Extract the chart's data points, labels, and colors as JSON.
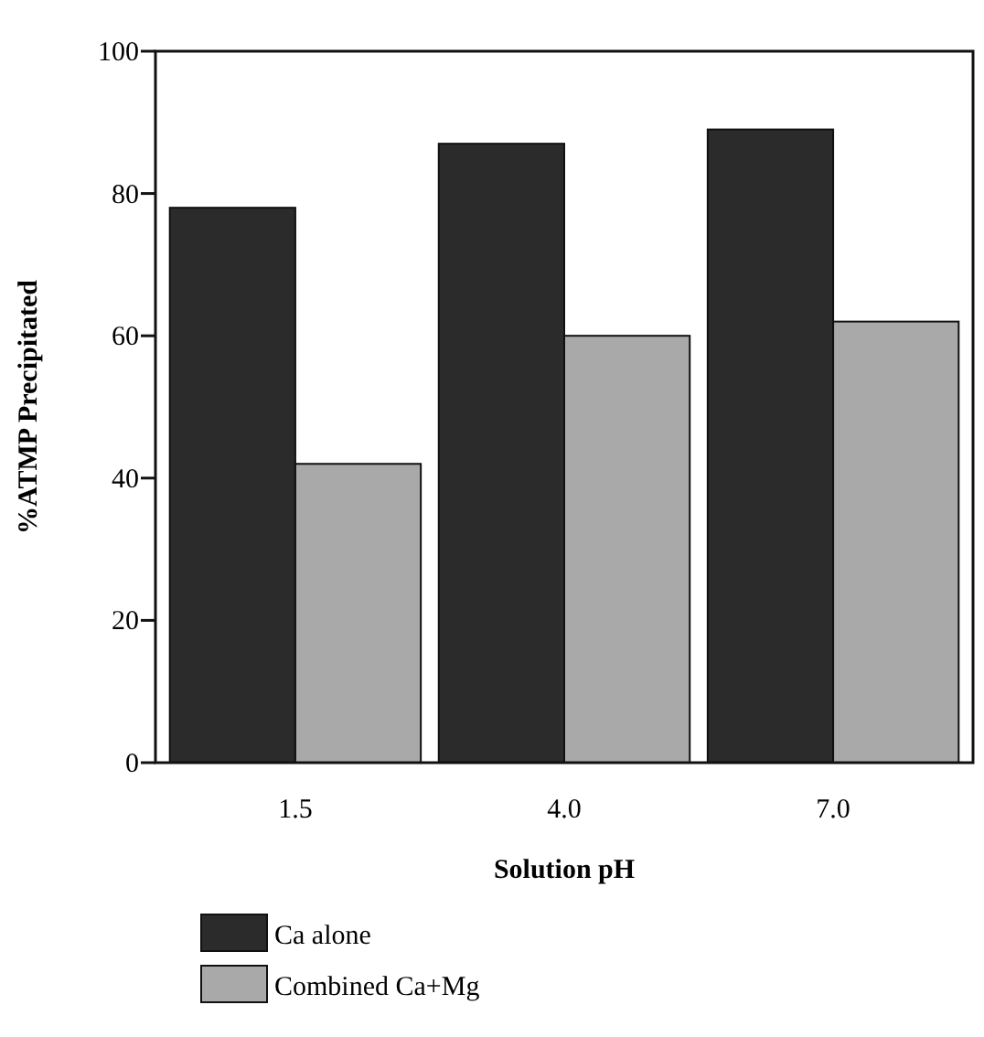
{
  "chart_data": {
    "type": "bar",
    "xlabel": "Solution pH",
    "ylabel": "%ATMP Precipitated",
    "categories": [
      "1.5",
      "4.0",
      "7.0"
    ],
    "series": [
      {
        "name": "Ca alone",
        "color": "#2b2b2b",
        "values": [
          78,
          87,
          89
        ]
      },
      {
        "name": "Combined Ca+Mg",
        "color": "#a9a9a9",
        "values": [
          42,
          60,
          62
        ]
      }
    ],
    "ylim": [
      0,
      100
    ],
    "yticks": [
      0,
      20,
      40,
      60,
      80,
      100
    ],
    "grid": false,
    "legend": "bottom left"
  }
}
